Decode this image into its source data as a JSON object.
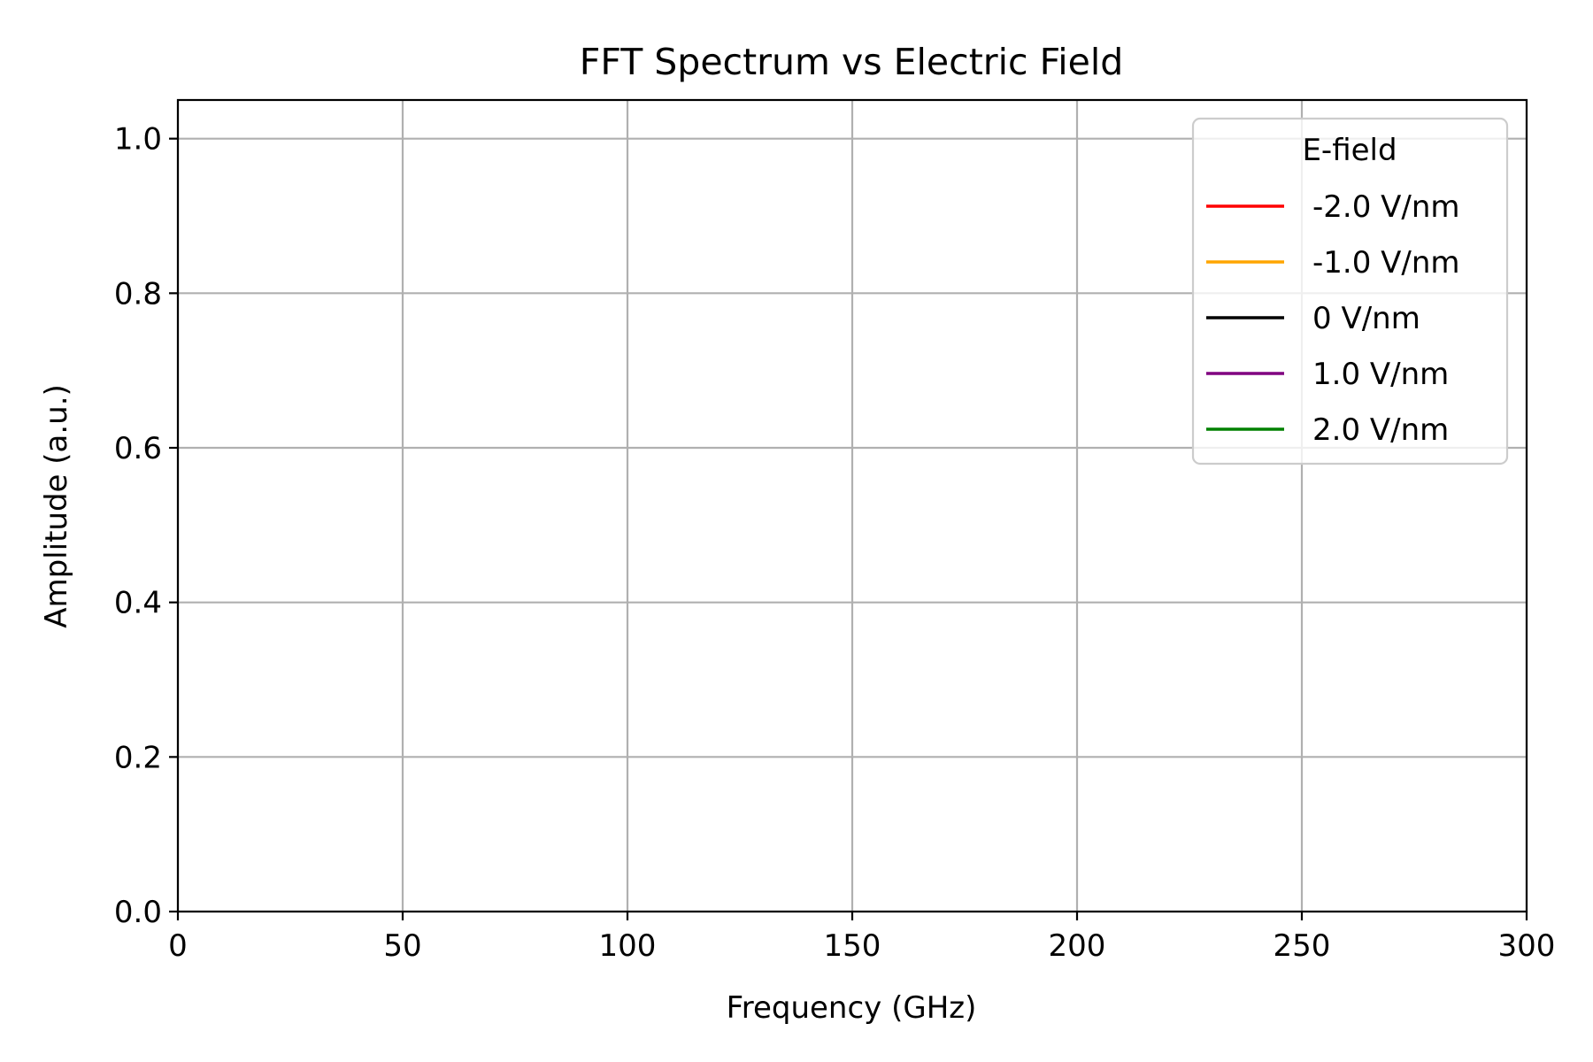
{
  "chart_data": {
    "type": "line",
    "title": "FFT Spectrum vs Electric Field",
    "xlabel": "Frequency (GHz)",
    "ylabel": "Amplitude (a.u.)",
    "xlim": [
      0,
      300
    ],
    "ylim": [
      0,
      1.05
    ],
    "x_ticks": [
      0,
      50,
      100,
      150,
      200,
      250,
      300
    ],
    "x_tick_labels": [
      "0",
      "50",
      "100",
      "150",
      "200",
      "250",
      "300"
    ],
    "y_ticks": [
      0.0,
      0.2,
      0.4,
      0.6,
      0.8,
      1.0
    ],
    "y_tick_labels": [
      "0.0",
      "0.2",
      "0.4",
      "0.6",
      "0.8",
      "1.0"
    ],
    "grid": true,
    "legend": {
      "title": "E-field",
      "placement": "top-right"
    },
    "series": [
      {
        "name": "-2.0 V/nm",
        "color": "#ff0000",
        "x": [],
        "y": []
      },
      {
        "name": "-1.0 V/nm",
        "color": "#ffa500",
        "x": [],
        "y": []
      },
      {
        "name": "0 V/nm",
        "color": "#000000",
        "x": [],
        "y": []
      },
      {
        "name": "1.0 V/nm",
        "color": "#800080",
        "x": [],
        "y": []
      },
      {
        "name": "2.0 V/nm",
        "color": "#008000",
        "x": [],
        "y": []
      }
    ]
  }
}
